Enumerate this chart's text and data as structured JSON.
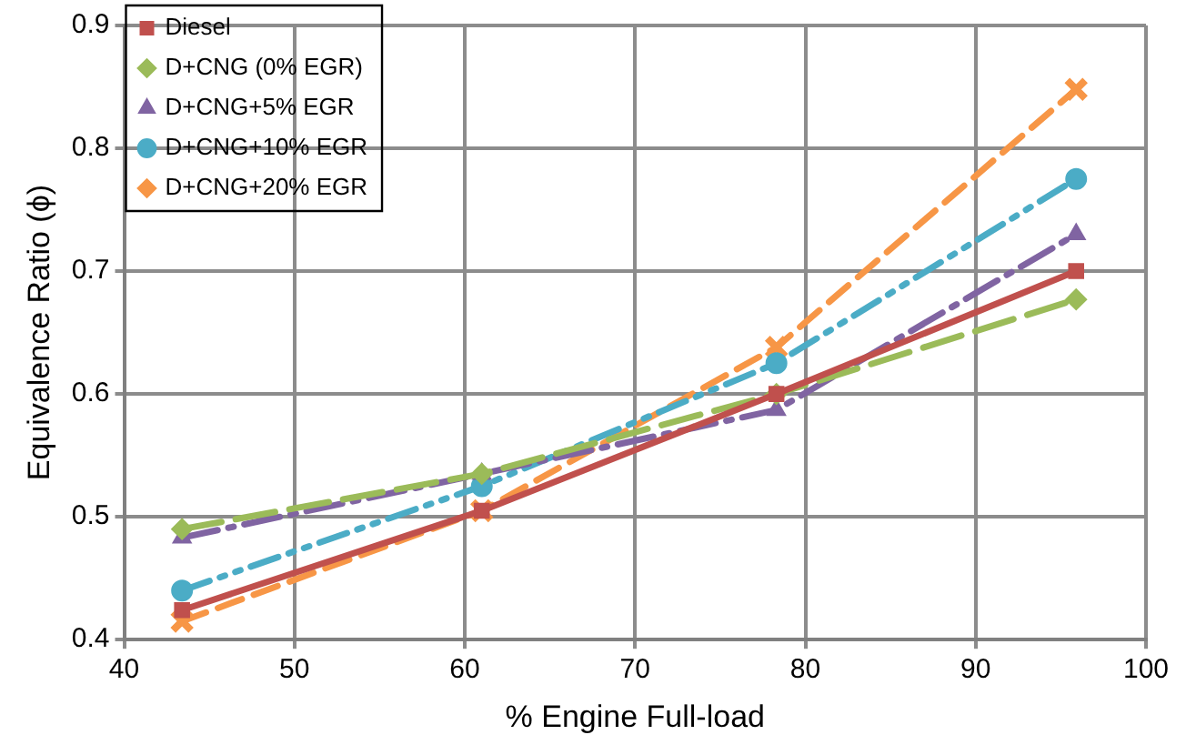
{
  "chart_data": {
    "type": "line",
    "xlabel": "% Engine Full-load",
    "ylabel": "Equivalence Ratio (ϕ)",
    "x": [
      43.4,
      61,
      78.3,
      95.9
    ],
    "series": [
      {
        "name": "Diesel",
        "color": "#c0504d",
        "values": [
          0.424,
          0.505,
          0.6,
          0.7
        ],
        "marker": "square",
        "line_style": "solid"
      },
      {
        "name": "D+CNG (0% EGR)",
        "color": "#9bbb59",
        "values": [
          0.49,
          0.535,
          0.6,
          0.677
        ],
        "marker": "diamond",
        "line_style": "dashed"
      },
      {
        "name": "D+CNG+5% EGR",
        "color": "#8064a2",
        "values": [
          0.483,
          0.535,
          0.587,
          0.73
        ],
        "marker": "triangle",
        "line_style": "dashed"
      },
      {
        "name": "D+CNG+10% EGR",
        "color": "#4bacc6",
        "values": [
          0.44,
          0.525,
          0.625,
          0.775
        ],
        "marker": "circle",
        "line_style": "dashed"
      },
      {
        "name": "D+CNG+20% EGR",
        "color": "#f79646",
        "values": [
          0.415,
          0.505,
          0.638,
          0.848
        ],
        "marker": "cross",
        "line_style": "dashed"
      }
    ],
    "xlim": [
      40,
      100
    ],
    "xticks": [
      40,
      50,
      60,
      70,
      80,
      90,
      100
    ],
    "ylim": [
      0.4,
      0.9
    ],
    "yticks": [
      {
        "value": 0.4,
        "label": "0.4"
      },
      {
        "value": 0.5,
        "label": "0.5"
      },
      {
        "value": 0.6,
        "label": "0.6"
      },
      {
        "value": 0.7,
        "label": "0.7"
      },
      {
        "value": 0.8,
        "label": "0.8"
      },
      {
        "value": 0.9,
        "label": "0.9"
      }
    ],
    "grid": true,
    "legend": "top left"
  }
}
